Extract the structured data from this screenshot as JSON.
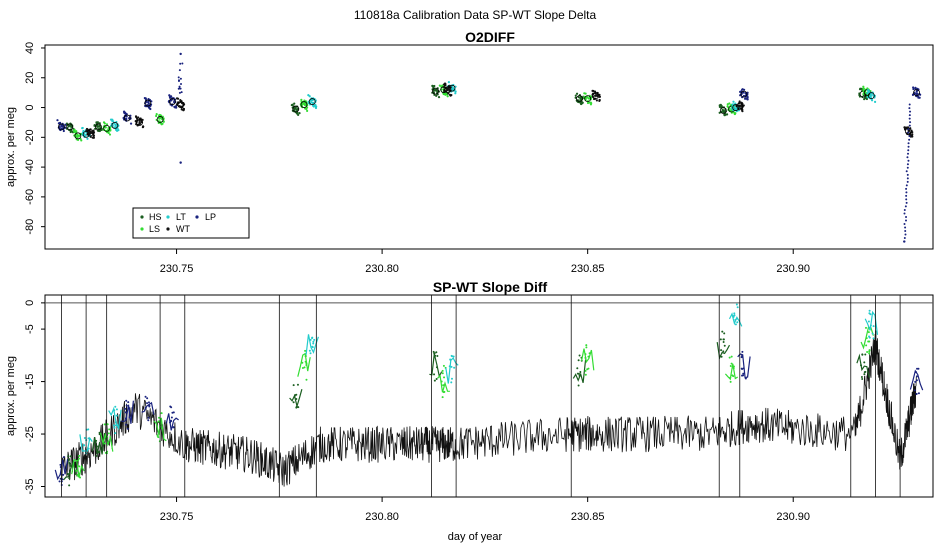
{
  "figure": {
    "suptitle": "110818a   Calibration Data SP-WT Slope Delta",
    "xlabel": "day of year"
  },
  "legend": {
    "entries": [
      {
        "label": "HS",
        "color": "#1b5e20"
      },
      {
        "label": "LS",
        "color": "#33dd33"
      },
      {
        "label": "LT",
        "color": "#22cccc"
      },
      {
        "label": "WT",
        "color": "#111111"
      },
      {
        "label": "LP",
        "color": "#1a237e"
      }
    ]
  },
  "chart_data": [
    {
      "type": "scatter",
      "title": "O2DIFF",
      "ylabel": "approx. per meg",
      "xlim": [
        230.718,
        230.934
      ],
      "ylim": [
        -95,
        42
      ],
      "xticks": [
        230.75,
        230.8,
        230.85,
        230.9
      ],
      "xtick_labels": [
        "230.75",
        "230.80",
        "230.85",
        "230.90"
      ],
      "yticks": [
        40,
        20,
        0,
        -20,
        -40,
        -60,
        -80
      ],
      "grid": false,
      "legend_position": "bottom-left",
      "series": [
        {
          "name": "HS",
          "color": "#1b5e20",
          "points": [
            [
              230.724,
              -13
            ],
            [
              230.731,
              -13
            ],
            [
              230.779,
              -1
            ],
            [
              230.813,
              11
            ],
            [
              230.848,
              6
            ],
            [
              230.883,
              -2
            ],
            [
              230.917,
              9
            ]
          ]
        },
        {
          "name": "LS",
          "color": "#33dd33",
          "points": [
            [
              230.726,
              -19
            ],
            [
              230.733,
              -14
            ],
            [
              230.746,
              -8
            ],
            [
              230.781,
              2
            ],
            [
              230.815,
              12
            ],
            [
              230.85,
              6
            ],
            [
              230.885,
              -1
            ],
            [
              230.918,
              10
            ]
          ]
        },
        {
          "name": "LT",
          "color": "#22cccc",
          "points": [
            [
              230.728,
              -18
            ],
            [
              230.735,
              -12
            ],
            [
              230.783,
              4
            ],
            [
              230.817,
              13
            ],
            [
              230.886,
              0
            ],
            [
              230.919,
              8
            ]
          ]
        },
        {
          "name": "WT",
          "color": "#111111",
          "points": [
            [
              230.729,
              -17
            ],
            [
              230.741,
              -10
            ],
            [
              230.751,
              2
            ],
            [
              230.816,
              12
            ],
            [
              230.852,
              8
            ],
            [
              230.887,
              1
            ],
            [
              230.928,
              -16
            ]
          ]
        },
        {
          "name": "LP",
          "color": "#1a237e",
          "points": [
            [
              230.722,
              -13
            ],
            [
              230.738,
              -7
            ],
            [
              230.743,
              3
            ],
            [
              230.749,
              4
            ],
            [
              230.751,
              36
            ],
            [
              230.751,
              -37
            ],
            [
              230.888,
              9
            ],
            [
              230.927,
              -90
            ],
            [
              230.93,
              10
            ]
          ]
        }
      ]
    },
    {
      "type": "line",
      "title": "SP-WT Slope Diff",
      "ylabel": "approx. per meg",
      "xlabel": "day of year",
      "xlim": [
        230.718,
        230.934
      ],
      "ylim": [
        -37,
        1.5
      ],
      "xticks": [
        230.75,
        230.8,
        230.85,
        230.9
      ],
      "xtick_labels": [
        "230.75",
        "230.80",
        "230.85",
        "230.90"
      ],
      "yticks": [
        0,
        -5,
        -15,
        -25,
        -35
      ],
      "reference_line": 0,
      "grid": false,
      "series": [
        {
          "name": "WT",
          "color": "#111111",
          "x": [
            230.722,
            230.73,
            230.74,
            230.752,
            230.76,
            230.768,
            230.776,
            230.785,
            230.795,
            230.805,
            230.812,
            230.818,
            230.83,
            230.845,
            230.853,
            230.865,
            230.88,
            230.89,
            230.9,
            230.915,
            230.92,
            230.926,
            230.93
          ],
          "values": [
            -32,
            -28,
            -20,
            -27,
            -28,
            -29,
            -32,
            -27,
            -27,
            -27,
            -27,
            -27,
            -26,
            -25,
            -25,
            -25,
            -25,
            -23,
            -24,
            -25,
            -8,
            -30,
            -16
          ]
        },
        {
          "name": "HS",
          "color": "#1b5e20",
          "x": [
            230.724,
            230.731,
            230.779,
            230.813,
            230.848,
            230.883,
            230.917
          ],
          "values": [
            -32,
            -27,
            -18,
            -12,
            -13,
            -8,
            -12
          ]
        },
        {
          "name": "LS",
          "color": "#33dd33",
          "x": [
            230.726,
            230.733,
            230.746,
            230.781,
            230.815,
            230.85,
            230.885,
            230.918
          ],
          "values": [
            -31,
            -26,
            -24,
            -12,
            -15,
            -11,
            -13,
            -7
          ]
        },
        {
          "name": "LT",
          "color": "#22cccc",
          "x": [
            230.728,
            230.735,
            230.783,
            230.817,
            230.886,
            230.919
          ],
          "values": [
            -26,
            -22,
            -8,
            -13,
            -3,
            -4
          ]
        },
        {
          "name": "LP",
          "color": "#1a237e",
          "x": [
            230.722,
            230.738,
            230.743,
            230.749,
            230.888,
            230.93
          ],
          "values": [
            -32,
            -21,
            -20,
            -22,
            -12,
            -15
          ]
        }
      ]
    }
  ]
}
